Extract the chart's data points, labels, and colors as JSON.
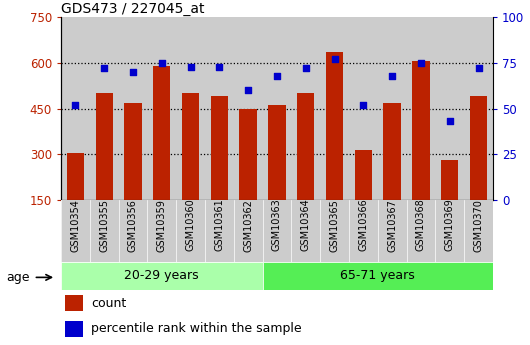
{
  "title": "GDS473 / 227045_at",
  "samples": [
    "GSM10354",
    "GSM10355",
    "GSM10356",
    "GSM10359",
    "GSM10360",
    "GSM10361",
    "GSM10362",
    "GSM10363",
    "GSM10364",
    "GSM10365",
    "GSM10366",
    "GSM10367",
    "GSM10368",
    "GSM10369",
    "GSM10370"
  ],
  "counts": [
    305,
    500,
    468,
    590,
    500,
    490,
    448,
    462,
    500,
    635,
    315,
    470,
    605,
    280,
    490
  ],
  "percentiles": [
    52,
    72,
    70,
    75,
    73,
    73,
    60,
    68,
    72,
    77,
    52,
    68,
    75,
    43,
    72
  ],
  "group1_label": "20-29 years",
  "group1_count": 7,
  "group2_label": "65-71 years",
  "group2_count": 8,
  "age_label": "age",
  "ylim_left": [
    150,
    750
  ],
  "ylim_right": [
    0,
    100
  ],
  "yticks_left": [
    150,
    300,
    450,
    600,
    750
  ],
  "yticks_right": [
    0,
    25,
    50,
    75,
    100
  ],
  "bar_color": "#BB2200",
  "dot_color": "#0000CC",
  "group1_color": "#AAFFAA",
  "group2_color": "#55EE55",
  "bg_color": "#CCCCCC",
  "legend_count_label": "count",
  "legend_pct_label": "percentile rank within the sample"
}
